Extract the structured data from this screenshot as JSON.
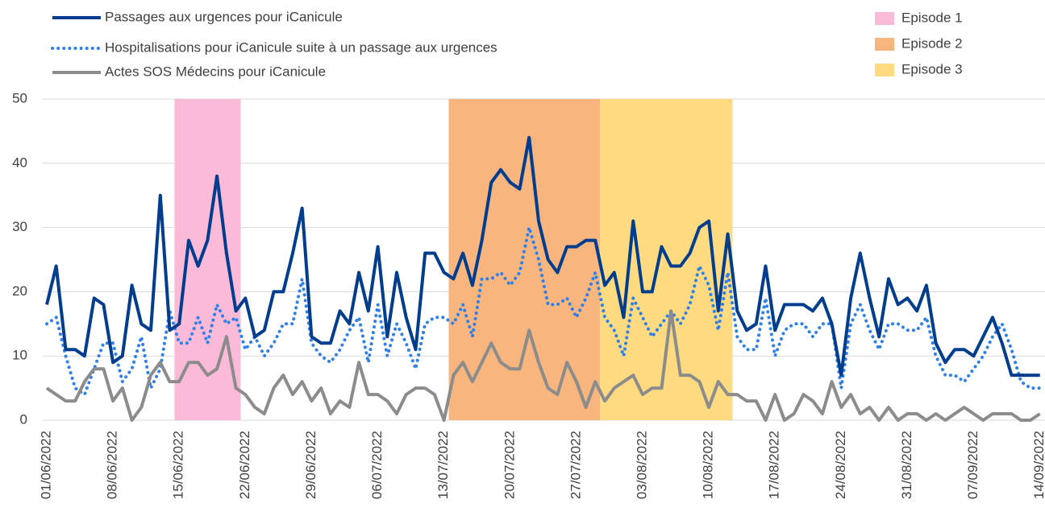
{
  "chart_data": {
    "type": "line",
    "categories": [
      "01/06/2022",
      null,
      null,
      null,
      null,
      null,
      null,
      "08/06/2022",
      null,
      null,
      null,
      null,
      null,
      null,
      "15/06/2022",
      null,
      null,
      null,
      null,
      null,
      null,
      "22/06/2022",
      null,
      null,
      null,
      null,
      null,
      null,
      "29/06/2022",
      null,
      null,
      null,
      null,
      null,
      null,
      "06/07/2022",
      null,
      null,
      null,
      null,
      null,
      null,
      "13/07/2022",
      null,
      null,
      null,
      null,
      null,
      null,
      "20/07/2022",
      null,
      null,
      null,
      null,
      null,
      null,
      "27/07/2022",
      null,
      null,
      null,
      null,
      null,
      null,
      "03/08/2022",
      null,
      null,
      null,
      null,
      null,
      null,
      "10/08/2022",
      null,
      null,
      null,
      null,
      null,
      null,
      "17/08/2022",
      null,
      null,
      null,
      null,
      null,
      null,
      "24/08/2022",
      null,
      null,
      null,
      null,
      null,
      null,
      "31/08/2022",
      null,
      null,
      null,
      null,
      null,
      null,
      "07/09/2022",
      null,
      null,
      null,
      null,
      null,
      null,
      "14/09/2022"
    ],
    "series": [
      {
        "name": "Passages aux urgences pour iCanicule",
        "color": "#003d8f",
        "style": "solid",
        "values": [
          18,
          24,
          11,
          11,
          10,
          19,
          18,
          9,
          10,
          21,
          15,
          14,
          35,
          14,
          15,
          28,
          24,
          28,
          38,
          26,
          17,
          19,
          13,
          14,
          20,
          20,
          26,
          33,
          13,
          12,
          12,
          17,
          15,
          23,
          17,
          27,
          13,
          23,
          16,
          11,
          26,
          26,
          23,
          22,
          26,
          21,
          28,
          37,
          39,
          37,
          36,
          44,
          31,
          25,
          23,
          27,
          27,
          28,
          28,
          21,
          23,
          16,
          31,
          20,
          20,
          27,
          24,
          24,
          26,
          30,
          31,
          17,
          29,
          17,
          14,
          15,
          24,
          14,
          18,
          18,
          18,
          17,
          19,
          15,
          7,
          19,
          26,
          19,
          13,
          22,
          18,
          19,
          17,
          21,
          12,
          9,
          11,
          11,
          10,
          13,
          16,
          12,
          7,
          7,
          7,
          7
        ]
      },
      {
        "name": "Hospitalisations pour iCanicule suite à un passage aux urgences",
        "color": "#2f80e8",
        "style": "dotted",
        "values": [
          15,
          16,
          10,
          5,
          4,
          8,
          12,
          12,
          6,
          8,
          13,
          5,
          8,
          17,
          12,
          12,
          16,
          12,
          18,
          15,
          16,
          11,
          13,
          10,
          12,
          15,
          15,
          22,
          12,
          10,
          9,
          11,
          14,
          16,
          9,
          18,
          10,
          15,
          12,
          8,
          15,
          16,
          16,
          15,
          18,
          13,
          22,
          22,
          23,
          21,
          23,
          30,
          25,
          18,
          18,
          19,
          16,
          19,
          23,
          16,
          14,
          10,
          19,
          16,
          13,
          15,
          17,
          15,
          18,
          24,
          21,
          14,
          23,
          13,
          11,
          11,
          19,
          10,
          14,
          15,
          15,
          13,
          15,
          15,
          5,
          15,
          18,
          14,
          11,
          15,
          15,
          14,
          14,
          16,
          10,
          7,
          7,
          6,
          8,
          10,
          13,
          15,
          11,
          6,
          5,
          5
        ]
      },
      {
        "name": "Actes SOS Médecins pour iCanicule",
        "color": "#8c8c8c",
        "style": "solid",
        "values": [
          5,
          4,
          3,
          3,
          6,
          8,
          8,
          3,
          5,
          0,
          2,
          7,
          9,
          6,
          6,
          9,
          9,
          7,
          8,
          13,
          5,
          4,
          2,
          1,
          5,
          7,
          4,
          6,
          3,
          5,
          1,
          3,
          2,
          9,
          4,
          4,
          3,
          1,
          4,
          5,
          5,
          4,
          0,
          7,
          9,
          6,
          9,
          12,
          9,
          8,
          8,
          14,
          9,
          5,
          4,
          9,
          6,
          2,
          6,
          3,
          5,
          6,
          7,
          4,
          5,
          5,
          17,
          7,
          7,
          6,
          2,
          6,
          4,
          4,
          3,
          3,
          0,
          4,
          0,
          1,
          4,
          3,
          1,
          6,
          2,
          4,
          1,
          2,
          0,
          2,
          0,
          1,
          1,
          0,
          1,
          0,
          1,
          2,
          1,
          0,
          1,
          1,
          1,
          0,
          0,
          1
        ]
      }
    ],
    "episodes": [
      {
        "name": "Episode 1",
        "color": "#fbbad8",
        "start": 14,
        "end": 20
      },
      {
        "name": "Episode 2",
        "color": "#f8b67e",
        "start": 43,
        "end": 58
      },
      {
        "name": "Episode 3",
        "color": "#fedb80",
        "start": 59,
        "end": 72
      }
    ],
    "ylim": [
      0,
      50
    ],
    "yticks": [
      0,
      10,
      20,
      30,
      40,
      50
    ],
    "grid": true
  }
}
